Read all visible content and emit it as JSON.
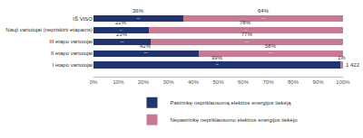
{
  "chart_data": {
    "type": "bar",
    "orientation": "horizontal",
    "stacked": true,
    "data_labels": true,
    "grid": false,
    "legend": "bottom",
    "categories": [
      "IŠ VISO",
      "Nauji vartotojai (nepriskirti etapams)",
      "III etapo vartotojai",
      "II etapo vartotojai",
      "I etapo vartotojai"
    ],
    "series": [
      {
        "name": "Pasirinkę nepriklausomą elektros energijos tiekėją",
        "color": "#1f3470",
        "values": [
          36,
          22,
          23,
          42,
          99
        ],
        "value_labels": [
          "36%",
          "22%",
          "23%",
          "42%",
          "99%"
        ],
        "counts": [
          605821,
          2574,
          183515,
          323395,
          96337
        ],
        "count_labels": [
          "605 821",
          "2 574",
          "183 515",
          "323 395",
          "96 337"
        ]
      },
      {
        "name": "Nepasirinkę nepriklausomo elektros energijos tiekėjo",
        "color": "#c97a92",
        "values": [
          64,
          78,
          77,
          58,
          1
        ],
        "value_labels": [
          "64%",
          "78%",
          "77%",
          "58%",
          "1%"
        ],
        "counts": [
          1054783,
          9157,
          605776,
          438428,
          1422
        ],
        "count_labels": [
          "1 054 783",
          "9 157",
          "605 776",
          "438 428",
          "1 422"
        ]
      }
    ],
    "xlim": [
      0,
      100
    ],
    "xticks": [
      {
        "value": 0,
        "label": "0%"
      },
      {
        "value": 10,
        "label": "10%"
      },
      {
        "value": 20,
        "label": "20%"
      },
      {
        "value": 30,
        "label": "30%"
      },
      {
        "value": 40,
        "label": "40%"
      },
      {
        "value": 50,
        "label": "50%"
      },
      {
        "value": 60,
        "label": "60%"
      },
      {
        "value": 70,
        "label": "70%"
      },
      {
        "value": 80,
        "label": "80%"
      },
      {
        "value": 90,
        "label": "90%"
      },
      {
        "value": 100,
        "label": "100%"
      }
    ]
  }
}
